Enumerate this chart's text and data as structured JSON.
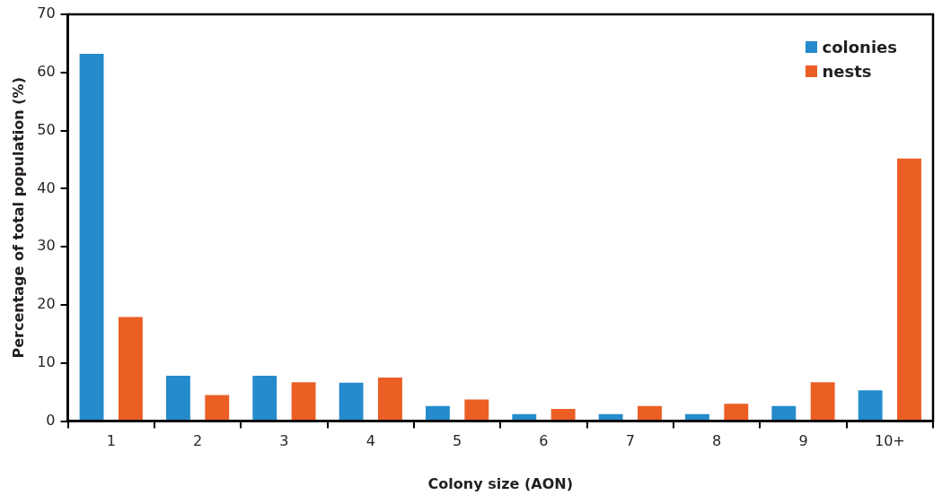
{
  "chart_data": {
    "type": "bar",
    "xlabel": "Colony size (AON)",
    "ylabel": "Percentage of total population (%)",
    "categories": [
      "1",
      "2",
      "3",
      "4",
      "5",
      "6",
      "7",
      "8",
      "9",
      "10+"
    ],
    "series": [
      {
        "name": "colonies",
        "color": "#258bcc",
        "values": [
          63.2,
          7.8,
          7.8,
          6.6,
          2.6,
          1.2,
          1.2,
          1.2,
          2.6,
          5.3
        ]
      },
      {
        "name": "nests",
        "color": "#eb5e24",
        "values": [
          17.9,
          4.5,
          6.7,
          7.5,
          3.7,
          2.1,
          2.6,
          3.0,
          6.7,
          45.2
        ]
      }
    ],
    "ylim": [
      0,
      70
    ],
    "yticks": [
      0,
      10,
      20,
      30,
      40,
      50,
      60,
      70
    ],
    "grid": false,
    "legend": "top right"
  }
}
